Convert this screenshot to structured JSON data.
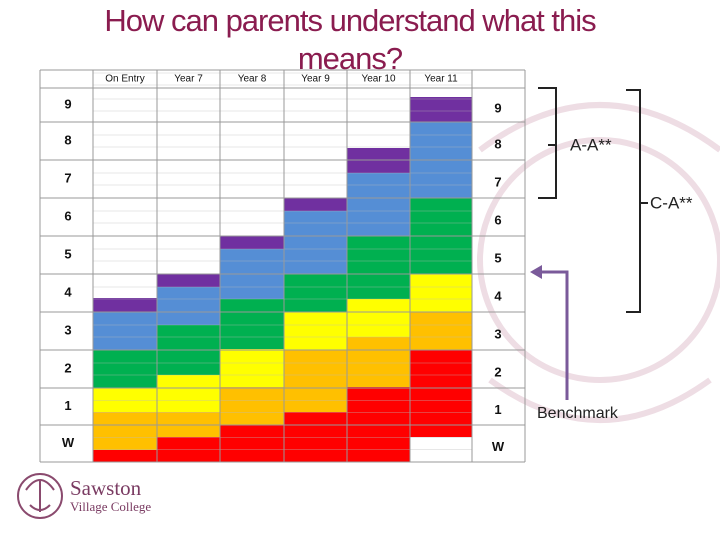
{
  "title": "How can parents understand what this means?",
  "table": {
    "columns": [
      "On Entry",
      "Year 7",
      "Year 8",
      "Year 9",
      "Year 10",
      "Year 11"
    ],
    "grades": [
      "9",
      "8",
      "7",
      "6",
      "5",
      "4",
      "3",
      "2",
      "1",
      "W"
    ]
  },
  "annotations": {
    "upper_bracket": "A-A**",
    "lower_bracket": "C-A**",
    "benchmark": "Benchmark"
  },
  "logo": {
    "name": "Sawston",
    "subtitle": "Village College"
  }
}
